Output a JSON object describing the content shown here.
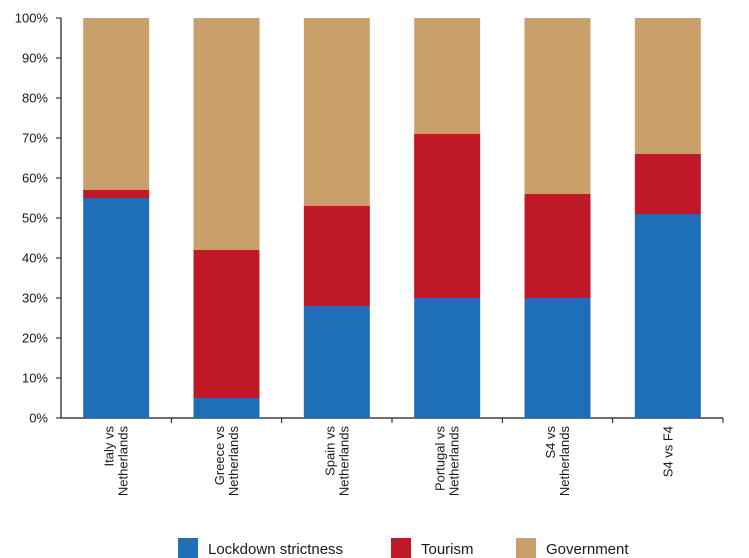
{
  "chart_data": {
    "type": "bar",
    "stacked": true,
    "percent": true,
    "categories": [
      [
        "Italy vs",
        "Netherlands"
      ],
      [
        "Greece vs",
        "Netherlands"
      ],
      [
        "Spain vs",
        "Netherlands"
      ],
      [
        "Portugal vs",
        "Netherlands"
      ],
      [
        "S4 vs",
        "Netherlands"
      ],
      [
        "S4 vs F4"
      ]
    ],
    "series": [
      {
        "name": "Lockdown strictness",
        "color": "#1f6fb8",
        "values": [
          55,
          5,
          28,
          30,
          30,
          51
        ]
      },
      {
        "name": "Tourism",
        "color": "#bf1826",
        "values": [
          2,
          37,
          25,
          41,
          26,
          15
        ]
      },
      {
        "name": "Government",
        "color": "#c9a06a",
        "values": [
          43,
          58,
          47,
          29,
          44,
          34
        ]
      }
    ],
    "ylim": [
      0,
      100
    ],
    "yticks": [
      "0%",
      "10%",
      "20%",
      "30%",
      "40%",
      "50%",
      "60%",
      "70%",
      "80%",
      "90%",
      "100%"
    ],
    "legend_position": "bottom",
    "grid": false
  }
}
